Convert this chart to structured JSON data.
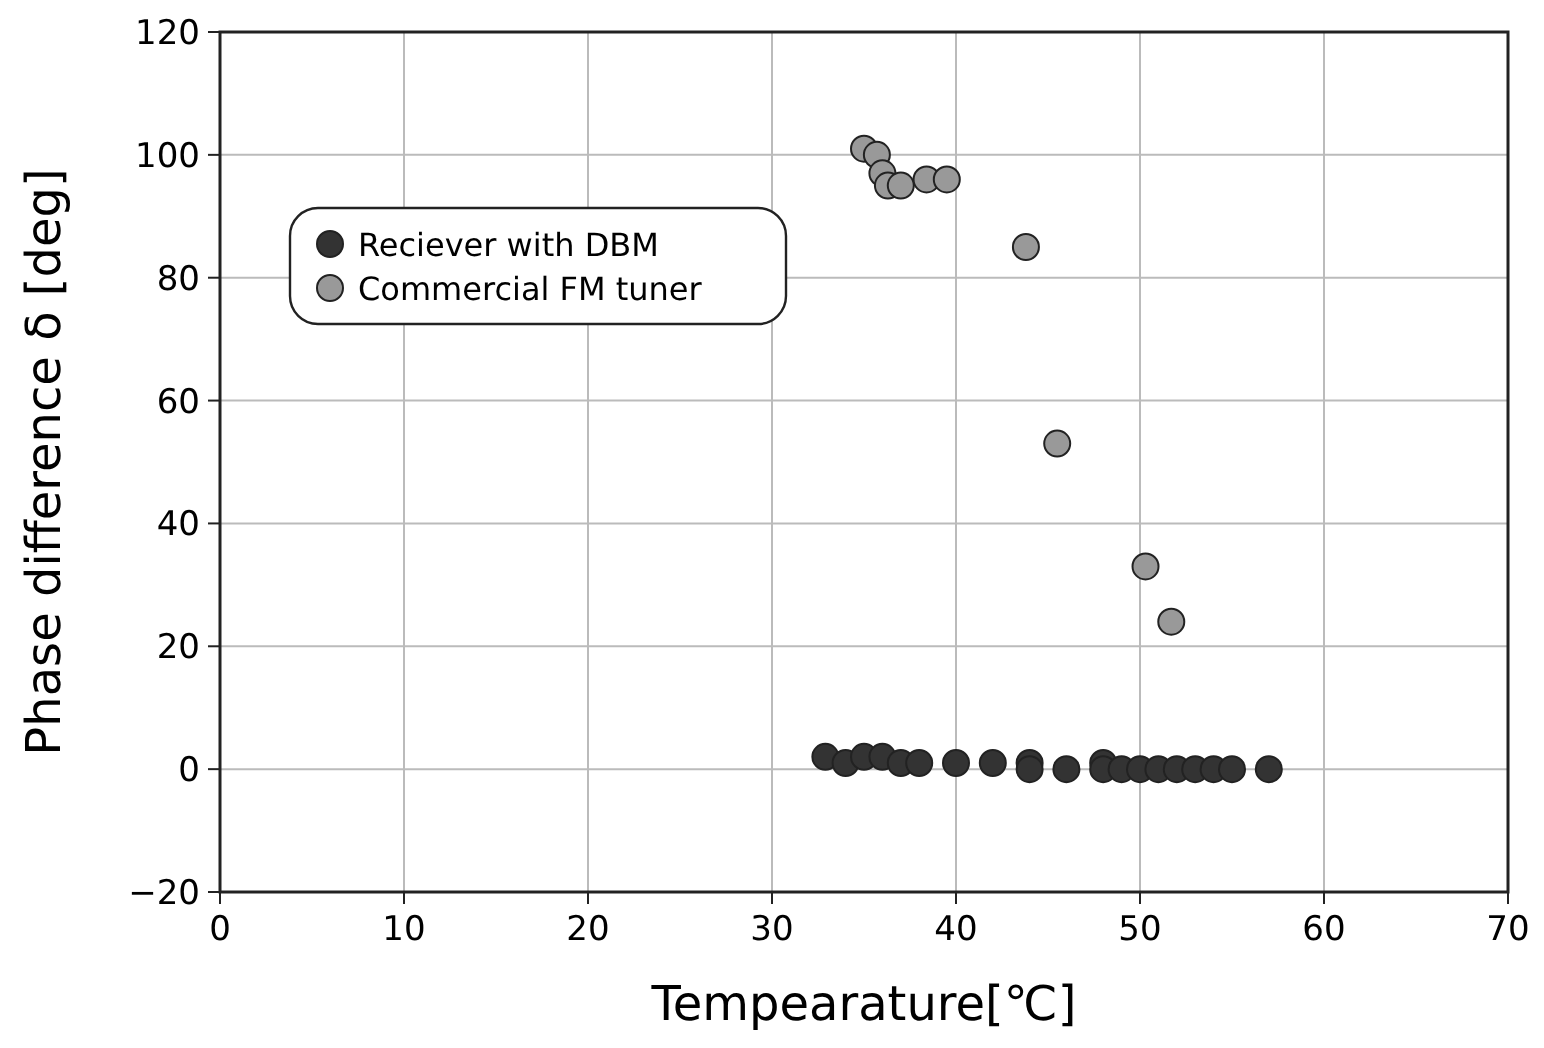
{
  "chart_data": {
    "type": "scatter",
    "xlabel": "Tempearature[℃]",
    "ylabel": "Phase difference δ [deg]",
    "xlim": [
      0,
      70
    ],
    "ylim": [
      -20,
      120
    ],
    "xticks": [
      0,
      10,
      20,
      30,
      40,
      50,
      60,
      70
    ],
    "yticks": [
      -20,
      0,
      20,
      40,
      60,
      80,
      100,
      120
    ],
    "grid": true,
    "legend": "top left",
    "marker": "circle",
    "series": [
      {
        "name": "Reciever with DBM",
        "color": "#333333",
        "x": [
          32.9,
          34,
          35,
          36,
          37,
          38,
          40,
          42,
          44,
          44,
          46,
          48,
          48,
          49,
          50,
          51,
          52,
          53,
          54,
          55,
          57
        ],
        "values": [
          2,
          1,
          2,
          2,
          1,
          1,
          1,
          1,
          1,
          0,
          0,
          1,
          0,
          0,
          0,
          0,
          0,
          0,
          0,
          0,
          0
        ]
      },
      {
        "name": "Commercial FM tuner",
        "color": "#999999",
        "x": [
          35,
          35.7,
          36,
          36.3,
          37,
          38.4,
          39.5,
          43.8,
          45.5,
          50.3,
          51.7
        ],
        "values": [
          101,
          100,
          97,
          95,
          95,
          96,
          96,
          85,
          53,
          33,
          24
        ]
      }
    ]
  }
}
